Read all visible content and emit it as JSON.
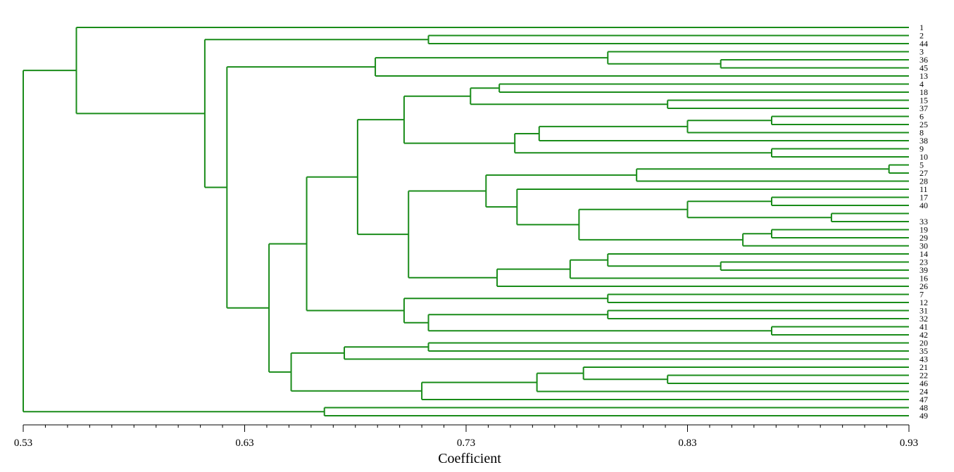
{
  "chart_data": {
    "type": "dendrogram",
    "orientation": "horizontal",
    "title": "",
    "xlabel": "Coefficient",
    "ylabel": "",
    "xlim": [
      0.53,
      0.93
    ],
    "xticks": [
      0.53,
      0.63,
      0.73,
      0.83,
      0.93
    ],
    "xtick_labels": [
      "0.53",
      "0.63",
      "0.73",
      "0.83",
      "0.93"
    ],
    "line_color": "#1a8c1a",
    "leaves": [
      "1",
      "2",
      "44",
      "3",
      "36",
      "45",
      "13",
      "4",
      "18",
      "15",
      "37",
      "6",
      "25",
      "8",
      "38",
      "9",
      "10",
      "5",
      "27",
      "28",
      "11",
      "17",
      "40",
      "",
      "33",
      "19",
      "29",
      "30",
      "14",
      "23",
      "39",
      "16",
      "26",
      "7",
      "12",
      "31",
      "32",
      "41",
      "42",
      "20",
      "35",
      "43",
      "21",
      "22",
      "46",
      "24",
      "47",
      "48",
      "49"
    ],
    "tree": {
      "h": 0.53,
      "c": [
        {
          "h": 0.554,
          "c": [
            {
              "l": 0
            },
            {
              "h": 0.612,
              "c": [
                {
                  "h": 0.713,
                  "c": [
                    {
                      "l": 1
                    },
                    {
                      "l": 2
                    }
                  ]
                },
                {
                  "h": 0.622,
                  "c": [
                    {
                      "h": 0.689,
                      "c": [
                        {
                          "h": 0.794,
                          "c": [
                            {
                              "l": 3
                            },
                            {
                              "h": 0.845,
                              "c": [
                                {
                                  "l": 4
                                },
                                {
                                  "l": 5
                                }
                              ]
                            }
                          ]
                        },
                        {
                          "l": 6
                        }
                      ]
                    },
                    {
                      "h": 0.641,
                      "c": [
                        {
                          "h": 0.658,
                          "c": [
                            {
                              "h": 0.681,
                              "c": [
                                {
                                  "h": 0.702,
                                  "c": [
                                    {
                                      "h": 0.732,
                                      "c": [
                                        {
                                          "h": 0.745,
                                          "c": [
                                            {
                                              "l": 7
                                            },
                                            {
                                              "l": 8
                                            }
                                          ]
                                        },
                                        {
                                          "h": 0.821,
                                          "c": [
                                            {
                                              "l": 9
                                            },
                                            {
                                              "l": 10
                                            }
                                          ]
                                        }
                                      ]
                                    },
                                    {
                                      "h": 0.752,
                                      "c": [
                                        {
                                          "h": 0.763,
                                          "c": [
                                            {
                                              "h": 0.83,
                                              "c": [
                                                {
                                                  "h": 0.868,
                                                  "c": [
                                                    {
                                                      "l": 11
                                                    },
                                                    {
                                                      "l": 12
                                                    }
                                                  ]
                                                },
                                                {
                                                  "l": 13
                                                }
                                              ]
                                            },
                                            {
                                              "l": 14
                                            }
                                          ]
                                        },
                                        {
                                          "h": 0.868,
                                          "c": [
                                            {
                                              "l": 15
                                            },
                                            {
                                              "l": 16
                                            }
                                          ]
                                        }
                                      ]
                                    }
                                  ]
                                },
                                {
                                  "h": 0.704,
                                  "c": [
                                    {
                                      "h": 0.739,
                                      "c": [
                                        {
                                          "h": 0.807,
                                          "c": [
                                            {
                                              "h": 0.921,
                                              "c": [
                                                {
                                                  "l": 17
                                                },
                                                {
                                                  "l": 18
                                                }
                                              ]
                                            },
                                            {
                                              "l": 19
                                            }
                                          ]
                                        },
                                        {
                                          "h": 0.753,
                                          "c": [
                                            {
                                              "l": 20
                                            },
                                            {
                                              "h": 0.781,
                                              "c": [
                                                {
                                                  "h": 0.83,
                                                  "c": [
                                                    {
                                                      "h": 0.868,
                                                      "c": [
                                                        {
                                                          "l": 21
                                                        },
                                                        {
                                                          "l": 22
                                                        }
                                                      ]
                                                    },
                                                    {
                                                      "h": 0.895,
                                                      "c": [
                                                        {
                                                          "l": 23
                                                        },
                                                        {
                                                          "l": 24
                                                        }
                                                      ]
                                                    }
                                                  ]
                                                },
                                                {
                                                  "h": 0.855,
                                                  "c": [
                                                    {
                                                      "h": 0.868,
                                                      "c": [
                                                        {
                                                          "l": 25
                                                        },
                                                        {
                                                          "l": 26
                                                        }
                                                      ]
                                                    },
                                                    {
                                                      "l": 27
                                                    }
                                                  ]
                                                }
                                              ]
                                            }
                                          ]
                                        }
                                      ]
                                    },
                                    {
                                      "h": 0.744,
                                      "c": [
                                        {
                                          "h": 0.777,
                                          "c": [
                                            {
                                              "h": 0.794,
                                              "c": [
                                                {
                                                  "l": 28
                                                },
                                                {
                                                  "h": 0.845,
                                                  "c": [
                                                    {
                                                      "l": 29
                                                    },
                                                    {
                                                      "l": 30
                                                    }
                                                  ]
                                                }
                                              ]
                                            },
                                            {
                                              "l": 31
                                            }
                                          ]
                                        },
                                        {
                                          "l": 32
                                        }
                                      ]
                                    }
                                  ]
                                }
                              ]
                            },
                            {
                              "h": 0.702,
                              "c": [
                                {
                                  "h": 0.794,
                                  "c": [
                                    {
                                      "l": 33
                                    },
                                    {
                                      "l": 34
                                    }
                                  ]
                                },
                                {
                                  "h": 0.713,
                                  "c": [
                                    {
                                      "h": 0.794,
                                      "c": [
                                        {
                                          "l": 35
                                        },
                                        {
                                          "l": 36
                                        }
                                      ]
                                    },
                                    {
                                      "h": 0.868,
                                      "c": [
                                        {
                                          "l": 37
                                        },
                                        {
                                          "l": 38
                                        }
                                      ]
                                    }
                                  ]
                                }
                              ]
                            }
                          ]
                        },
                        {
                          "h": 0.651,
                          "c": [
                            {
                              "h": 0.675,
                              "c": [
                                {
                                  "h": 0.713,
                                  "c": [
                                    {
                                      "l": 39
                                    },
                                    {
                                      "l": 40
                                    }
                                  ]
                                },
                                {
                                  "l": 41
                                }
                              ]
                            },
                            {
                              "h": 0.71,
                              "c": [
                                {
                                  "h": 0.762,
                                  "c": [
                                    {
                                      "h": 0.783,
                                      "c": [
                                        {
                                          "l": 42
                                        },
                                        {
                                          "h": 0.821,
                                          "c": [
                                            {
                                              "l": 43
                                            },
                                            {
                                              "l": 44
                                            }
                                          ]
                                        }
                                      ]
                                    },
                                    {
                                      "l": 45
                                    }
                                  ]
                                },
                                {
                                  "l": 46
                                }
                              ]
                            }
                          ]
                        }
                      ]
                    }
                  ]
                }
              ]
            }
          ]
        },
        {
          "h": 0.666,
          "c": [
            {
              "l": 47
            },
            {
              "l": 48
            }
          ]
        }
      ]
    }
  }
}
